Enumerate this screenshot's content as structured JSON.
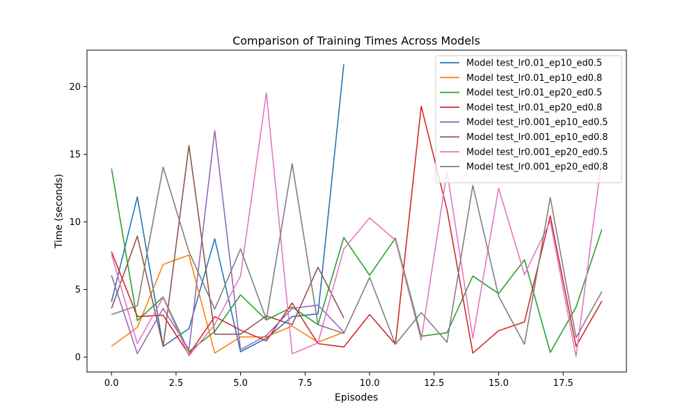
{
  "chart_data": {
    "type": "line",
    "title": "Comparison of Training Times Across Models",
    "xlabel": "Episodes",
    "ylabel": "Time (seconds)",
    "xlim": [
      -0.95,
      19.95
    ],
    "ylim": [
      -1.1,
      22.7
    ],
    "xticks": [
      0.0,
      2.5,
      5.0,
      7.5,
      10.0,
      12.5,
      15.0,
      17.5
    ],
    "xtick_labels": [
      "0.0",
      "2.5",
      "5.0",
      "7.5",
      "10.0",
      "12.5",
      "15.0",
      "17.5"
    ],
    "yticks": [
      0,
      5,
      10,
      15,
      20
    ],
    "ytick_labels": [
      "0",
      "5",
      "10",
      "15",
      "20"
    ],
    "grid": false,
    "legend_position": "top-right",
    "series": [
      {
        "name": "Model test_lr0.01_ep10_ed0.5",
        "color": "#1f77b4",
        "x": [
          0,
          1,
          2,
          3,
          4,
          5,
          6,
          7,
          8,
          9
        ],
        "y": [
          4.1,
          11.85,
          0.8,
          2.1,
          8.75,
          0.4,
          1.4,
          3.0,
          3.2,
          21.65
        ]
      },
      {
        "name": "Model test_lr0.01_ep10_ed0.8",
        "color": "#ff7f0e",
        "x": [
          0,
          1,
          2,
          3,
          4,
          5,
          6,
          7,
          8,
          9
        ],
        "y": [
          0.8,
          2.2,
          6.85,
          7.55,
          0.3,
          1.5,
          1.5,
          2.3,
          1.1,
          1.85
        ]
      },
      {
        "name": "Model test_lr0.01_ep20_ed0.5",
        "color": "#2ca02c",
        "x": [
          0,
          1,
          2,
          3,
          4,
          5,
          6,
          7,
          8,
          9,
          10,
          11,
          12,
          13,
          14,
          15,
          16,
          17,
          18,
          19
        ],
        "y": [
          13.95,
          2.7,
          4.45,
          0.4,
          1.9,
          4.6,
          2.75,
          3.7,
          2.4,
          8.85,
          6.05,
          8.8,
          1.55,
          1.8,
          6.0,
          4.7,
          7.2,
          0.35,
          3.7,
          9.45
        ]
      },
      {
        "name": "Model test_lr0.01_ep20_ed0.8",
        "color": "#d62728",
        "x": [
          0,
          1,
          2,
          3,
          4,
          5,
          6,
          7,
          8,
          9,
          10,
          11,
          12,
          13,
          14,
          15,
          16,
          17,
          18,
          19
        ],
        "y": [
          7.8,
          3.0,
          3.1,
          0.2,
          3.0,
          2.0,
          1.2,
          4.0,
          1.0,
          0.75,
          3.15,
          0.95,
          18.55,
          10.9,
          0.3,
          1.95,
          2.6,
          10.45,
          0.8,
          4.15
        ]
      },
      {
        "name": "Model test_lr0.001_ep10_ed0.5",
        "color": "#9467bd",
        "x": [
          0,
          1,
          2,
          3,
          4,
          5,
          6,
          7,
          8,
          9
        ],
        "y": [
          6.05,
          0.25,
          3.6,
          0.55,
          16.75,
          0.55,
          1.6,
          3.6,
          3.85,
          1.85
        ]
      },
      {
        "name": "Model test_lr0.001_ep10_ed0.8",
        "color": "#8c564b",
        "x": [
          0,
          1,
          2,
          3,
          4,
          5,
          6,
          7,
          8,
          9
        ],
        "y": [
          3.6,
          8.95,
          0.8,
          15.65,
          1.7,
          1.7,
          3.05,
          2.4,
          6.65,
          2.9
        ]
      },
      {
        "name": "Model test_lr0.001_ep20_ed0.5",
        "color": "#e377c2",
        "x": [
          0,
          1,
          2,
          3,
          4,
          5,
          6,
          7,
          8,
          9,
          10,
          11,
          12,
          13,
          14,
          15,
          16,
          17,
          18,
          19
        ],
        "y": [
          7.6,
          1.0,
          4.4,
          0.1,
          2.4,
          6.0,
          19.55,
          0.25,
          1.05,
          8.0,
          10.3,
          8.65,
          1.25,
          13.75,
          1.4,
          12.5,
          6.1,
          10.05,
          0.05,
          14.7
        ]
      },
      {
        "name": "Model test_lr0.001_ep20_ed0.8",
        "color": "#7f7f7f",
        "x": [
          0,
          1,
          2,
          3,
          4,
          5,
          6,
          7,
          8,
          9,
          10,
          11,
          12,
          13,
          14,
          15,
          16,
          17,
          18,
          19
        ],
        "y": [
          3.15,
          3.8,
          14.05,
          7.8,
          3.55,
          8.0,
          2.8,
          14.3,
          2.4,
          1.75,
          5.9,
          0.95,
          3.3,
          1.1,
          12.7,
          4.5,
          0.95,
          11.8,
          1.45,
          4.85
        ]
      }
    ]
  }
}
